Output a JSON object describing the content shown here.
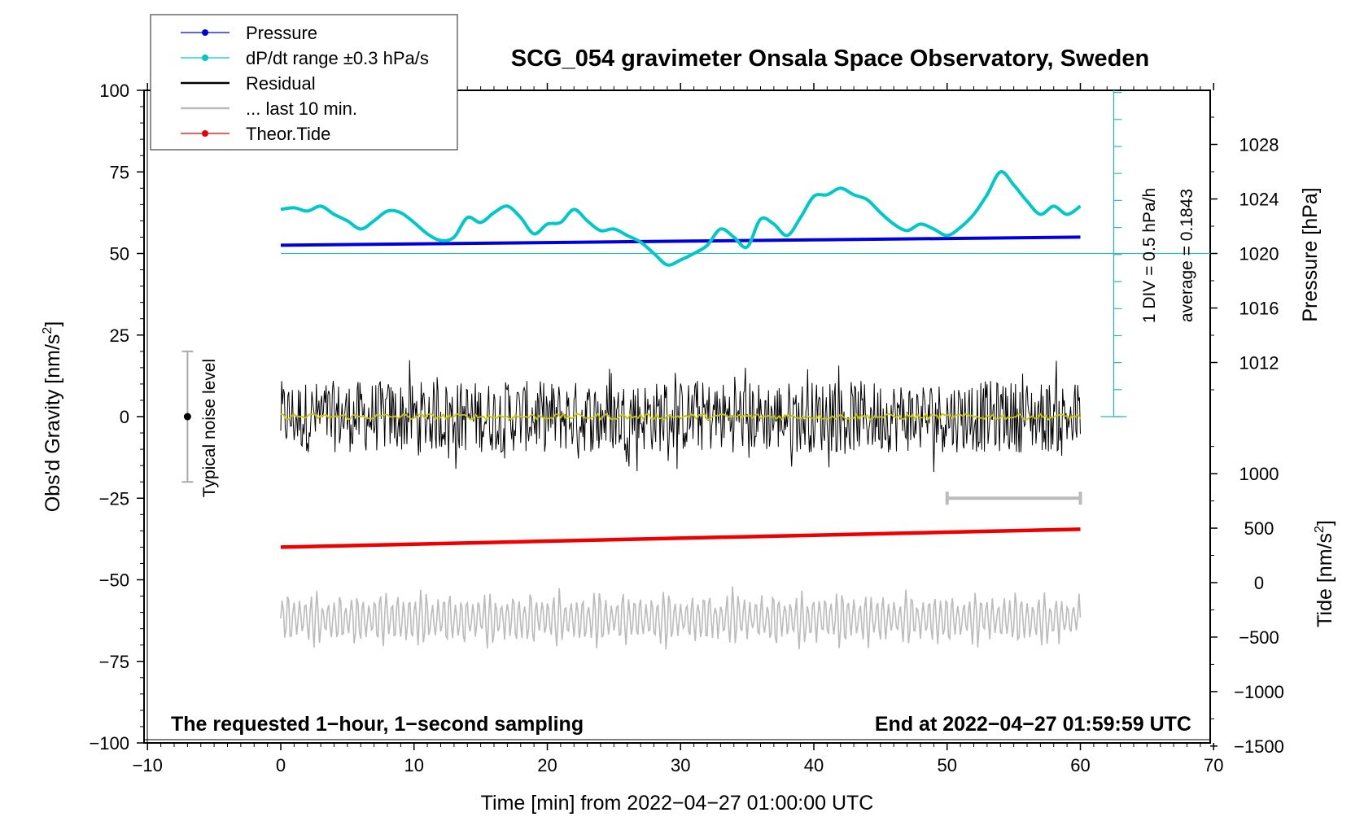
{
  "chart_data": {
    "type": "line",
    "title": "SCG_054 gravimeter Onsala Space Observatory, Sweden",
    "xlabel": "Time [min] from 2022−04−27 01:00:00 UTC",
    "ylabel_left": "Obs'd Gravity [nm/s",
    "ylabel_left_sup": "2",
    "ylabel_left_close": "]",
    "ylabel_right_pressure": "Pressure [hPa]",
    "ylabel_right_tide": "Tide [nm/s",
    "ylabel_right_tide_sup": "2",
    "ylabel_right_tide_close": "]",
    "xlim": [
      -10,
      70
    ],
    "ylim_left": [
      -100,
      100
    ],
    "x_ticks": [
      {
        "v": -10,
        "t": "−10"
      },
      {
        "v": 0,
        "t": "0"
      },
      {
        "v": 10,
        "t": "10"
      },
      {
        "v": 20,
        "t": "20"
      },
      {
        "v": 30,
        "t": "30"
      },
      {
        "v": 40,
        "t": "40"
      },
      {
        "v": 50,
        "t": "50"
      },
      {
        "v": 60,
        "t": "60"
      },
      {
        "v": 70,
        "t": "70"
      }
    ],
    "y_ticks_left": [
      {
        "v": 100,
        "t": "100"
      },
      {
        "v": 75,
        "t": "75"
      },
      {
        "v": 50,
        "t": "50"
      },
      {
        "v": 25,
        "t": "25"
      },
      {
        "v": 0,
        "t": "0"
      },
      {
        "v": -25,
        "t": "−25"
      },
      {
        "v": -50,
        "t": "−50"
      },
      {
        "v": -75,
        "t": "−75"
      },
      {
        "v": -100,
        "t": "−100"
      }
    ],
    "pressure_axis": {
      "range_hpa": [
        1008,
        1032
      ],
      "ticks": [
        {
          "v": 1028,
          "t": "1028"
        },
        {
          "v": 1024,
          "t": "1024"
        },
        {
          "v": 1020,
          "t": "1020"
        },
        {
          "v": 1016,
          "t": "1016"
        },
        {
          "v": 1012,
          "t": "1012"
        }
      ]
    },
    "tide_axis": {
      "range": [
        -1500,
        1500
      ],
      "ticks": [
        {
          "v": 1000,
          "t": "1000"
        },
        {
          "v": 500,
          "t": "500"
        },
        {
          "v": 0,
          "t": "0"
        },
        {
          "v": -500,
          "t": "−500"
        },
        {
          "v": -1000,
          "t": "−1000"
        },
        {
          "v": -1500,
          "t": "−1500"
        }
      ]
    },
    "legend": [
      {
        "name": "Pressure",
        "color": "#0000dd",
        "marker": true
      },
      {
        "name": "dP/dt range ±0.3 hPa/s",
        "color": "#00c8c8",
        "marker": true
      },
      {
        "name": "Residual",
        "color": "#000000",
        "marker": false
      },
      {
        "name": "... last 10 min.",
        "color": "#bbbbbb",
        "marker": false
      },
      {
        "name": "Theor.Tide",
        "color": "#ee0000",
        "marker": true
      }
    ],
    "series": [
      {
        "name": "Pressure",
        "color": "#0000dd",
        "unit": "hPa",
        "x": [
          0,
          10,
          20,
          30,
          40,
          50,
          60
        ],
        "values": [
          1020.6,
          1020.7,
          1020.8,
          1020.9,
          1021.0,
          1021.1,
          1021.2
        ]
      },
      {
        "name": "dP/dt",
        "color": "#00c8c8",
        "unit": "left-axis units",
        "x": [
          0,
          1,
          2,
          3,
          4,
          5,
          6,
          7,
          8,
          9,
          10,
          11,
          12,
          13,
          14,
          15,
          16,
          17,
          18,
          19,
          20,
          21,
          22,
          23,
          24,
          25,
          26,
          27,
          28,
          29,
          30,
          31,
          32,
          33,
          34,
          35,
          36,
          37,
          38,
          39,
          40,
          41,
          42,
          43,
          44,
          45,
          46,
          47,
          48,
          49,
          50,
          51,
          52,
          53,
          54,
          55,
          56,
          57,
          58,
          59,
          60
        ],
        "values": [
          63.5,
          64,
          63,
          64.5,
          62,
          60,
          57.5,
          60,
          63,
          62.5,
          59.5,
          56,
          54,
          55,
          61,
          59.5,
          62.5,
          64.5,
          61,
          56,
          59,
          59.5,
          63.5,
          60,
          57,
          57.5,
          55.5,
          53.5,
          50,
          46.5,
          48,
          50,
          52.5,
          57.5,
          55,
          52,
          60.5,
          59,
          55.5,
          61,
          67.5,
          68,
          70,
          68,
          66.5,
          62.5,
          59,
          57,
          59,
          57.5,
          55.5,
          58,
          62,
          68,
          75,
          71,
          66,
          62,
          64.5,
          62,
          64.5
        ]
      },
      {
        "name": "Residual",
        "color": "#000000",
        "x_range": [
          0,
          60
        ],
        "amplitude": 11,
        "smoothed_color": "#c8c800"
      },
      {
        "name": "Theor.Tide",
        "color": "#ee0000",
        "unit": "left-axis units",
        "x": [
          0,
          60
        ],
        "values": [
          -40,
          -34.5
        ]
      },
      {
        "name": "... last 10 min.",
        "color": "#bbbbbb",
        "x_range": [
          0,
          60
        ],
        "center": -62,
        "amplitude": 7
      }
    ],
    "pressure_scale_bar": {
      "div_label": "1 DIV = 0.5 hPa/h",
      "average_label": "average = 0.1843",
      "level_left_units": 50
    },
    "noise_level": {
      "label": "Typical noise level",
      "x": -7,
      "center": 0,
      "range": [
        -20,
        20
      ]
    },
    "last_10_min_bar": {
      "x": [
        50,
        60
      ],
      "y": -25
    },
    "annotations": {
      "left": "The requested 1−hour, 1−second sampling",
      "right": "End at 2022−04−27 01:59:59 UTC"
    }
  }
}
